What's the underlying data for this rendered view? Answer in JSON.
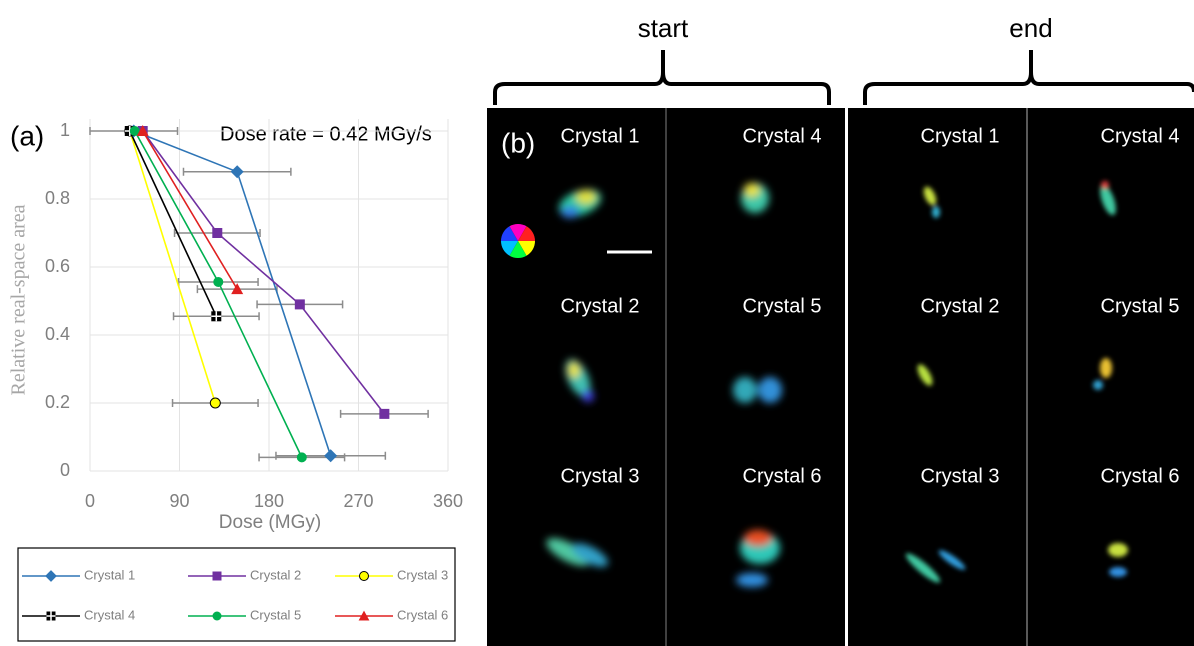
{
  "chart_data": {
    "type": "line",
    "panel_label": "(a)",
    "annotation": "Dose rate = 0.42 MGy/s",
    "x_label": "Dose (MGy)",
    "y_label": "Relative real-space area",
    "xlim": [
      0,
      360
    ],
    "xticks": [
      0,
      90,
      180,
      270,
      360
    ],
    "ylim": [
      0,
      1
    ],
    "yticks": [
      0,
      0.2,
      0.4,
      0.6,
      0.8,
      1
    ],
    "grid": true,
    "errorbar_color": "#8c8c8c",
    "series": [
      {
        "name": "Crystal 1",
        "color": "#2e75b6",
        "marker": "diamond",
        "x": [
          44,
          148,
          242
        ],
        "values": [
          1,
          0.88,
          0.045
        ],
        "xerr": [
          44,
          54,
          55
        ]
      },
      {
        "name": "Crystal 2",
        "color": "#7030a0",
        "marker": "square",
        "x": [
          53,
          128,
          211,
          296
        ],
        "values": [
          1,
          0.7,
          0.49,
          0.168
        ],
        "xerr": [
          null,
          43,
          43,
          44
        ]
      },
      {
        "name": "Crystal 3",
        "color": "#ffff00",
        "marker": "circle-outline",
        "x": [
          40,
          126
        ],
        "values": [
          1,
          0.2
        ],
        "xerr": [
          null,
          43
        ]
      },
      {
        "name": "Crystal 4",
        "color": "#000000",
        "marker": "square-cross",
        "x": [
          40,
          127
        ],
        "values": [
          1,
          0.455
        ],
        "xerr": [
          null,
          43
        ]
      },
      {
        "name": "Crystal 5",
        "color": "#00b050",
        "marker": "circle",
        "x": [
          45,
          129,
          213
        ],
        "values": [
          1,
          0.556,
          0.04
        ],
        "xerr": [
          null,
          40,
          43
        ]
      },
      {
        "name": "Crystal 6",
        "color": "#e02020",
        "marker": "triangle",
        "x": [
          53,
          148
        ],
        "values": [
          1,
          0.535
        ],
        "xerr": [
          null,
          40
        ]
      }
    ]
  },
  "panel_b": {
    "label": "(b)",
    "groups": [
      {
        "title": "start",
        "crystals": [
          "Crystal 1",
          "Crystal 4",
          "Crystal 2",
          "Crystal 5",
          "Crystal 3",
          "Crystal 6"
        ]
      },
      {
        "title": "end",
        "crystals": [
          "Crystal 1",
          "Crystal 4",
          "Crystal 2",
          "Crystal 5",
          "Crystal 3",
          "Crystal 6"
        ]
      }
    ]
  }
}
